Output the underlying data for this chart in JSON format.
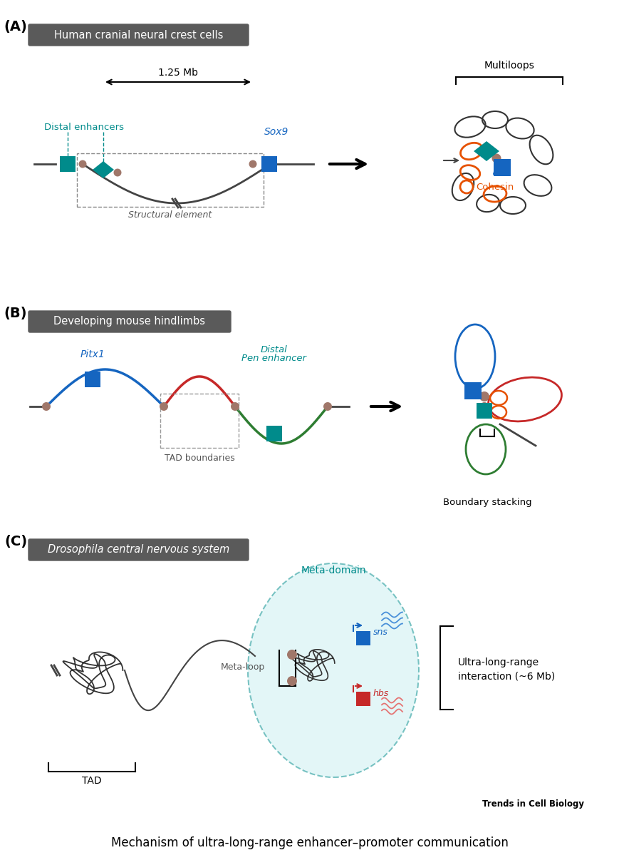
{
  "title": "Mechanism of ultra-long-range enhancer–promoter communication",
  "panel_A_title": "Human cranial neural crest cells",
  "panel_B_title": "Developing mouse hindlimbs",
  "panel_C_title": "Drosophila central nervous system",
  "teal": "#008B8B",
  "blue": "#1565C0",
  "red": "#C62828",
  "green": "#2E7D32",
  "orange": "#E65100",
  "brown": "#A0776A",
  "dark_line": "#444444",
  "label_bg": "#5A5A5A",
  "trends_text": "Trends in Cell Biology"
}
